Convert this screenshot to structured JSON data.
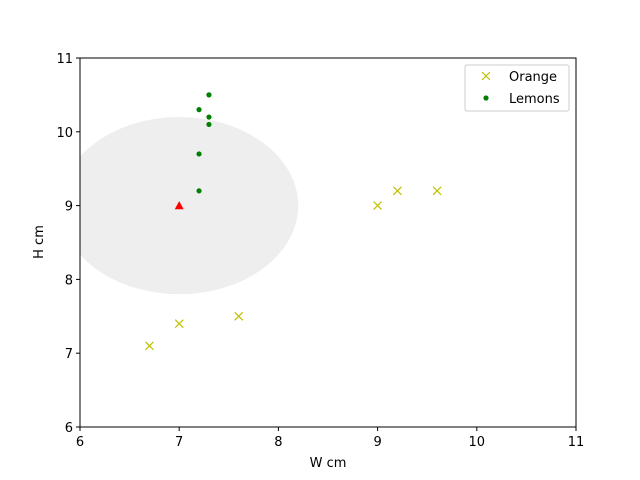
{
  "chart_data": {
    "type": "scatter",
    "title": "",
    "xlabel": "W cm",
    "ylabel": "H cm",
    "xlim": [
      6,
      11
    ],
    "ylim": [
      6,
      11
    ],
    "xticks": [
      "6",
      "7",
      "8",
      "9",
      "10",
      "11"
    ],
    "yticks": [
      "6",
      "7",
      "8",
      "9",
      "10",
      "11"
    ],
    "grid": false,
    "legend_position": "top-right",
    "series": [
      {
        "name": "Orange",
        "marker": "x",
        "color": "#bfbf00",
        "points": [
          {
            "x": 6.7,
            "y": 7.1
          },
          {
            "x": 7.0,
            "y": 7.4
          },
          {
            "x": 7.6,
            "y": 7.5
          },
          {
            "x": 9.0,
            "y": 9.0
          },
          {
            "x": 9.2,
            "y": 9.2
          },
          {
            "x": 9.6,
            "y": 9.2
          }
        ]
      },
      {
        "name": "Lemons",
        "marker": "dot",
        "color": "#008000",
        "points": [
          {
            "x": 7.2,
            "y": 9.2
          },
          {
            "x": 7.2,
            "y": 9.7
          },
          {
            "x": 7.3,
            "y": 10.1
          },
          {
            "x": 7.3,
            "y": 10.2
          },
          {
            "x": 7.2,
            "y": 10.3
          },
          {
            "x": 7.3,
            "y": 10.5
          }
        ]
      }
    ],
    "query_point": {
      "x": 7.0,
      "y": 9.0,
      "marker": "triangle",
      "color": "#ff0000"
    },
    "region": {
      "shape": "circle",
      "center": {
        "x": 7.0,
        "y": 9.0
      },
      "radius": 1.2,
      "color": "#eeeeee"
    }
  }
}
